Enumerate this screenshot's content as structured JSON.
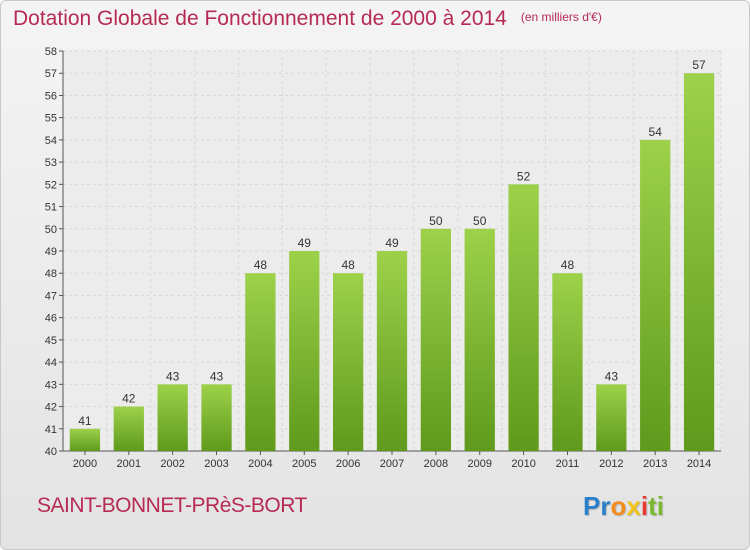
{
  "chart_data": {
    "type": "bar",
    "title": "Dotation Globale de Fonctionnement de 2000 à 2014",
    "unit_note": "(en milliers d'€)",
    "categories": [
      "2000",
      "2001",
      "2002",
      "2003",
      "2004",
      "2005",
      "2006",
      "2007",
      "2008",
      "2009",
      "2010",
      "2011",
      "2012",
      "2013",
      "2014"
    ],
    "values": [
      41,
      42,
      43,
      43,
      48,
      49,
      48,
      49,
      50,
      50,
      52,
      48,
      43,
      54,
      57
    ],
    "ylim": [
      40,
      58
    ],
    "yticks": [
      40,
      41,
      42,
      43,
      44,
      45,
      46,
      47,
      48,
      49,
      50,
      51,
      52,
      53,
      54,
      55,
      56,
      57,
      58
    ],
    "grid": true,
    "bar_color": "#7cb82f"
  },
  "commune": "SAINT-BONNET-PRèS-BORT",
  "logo": {
    "letters": [
      "P",
      "r",
      "o",
      "x",
      "i",
      "t",
      "i"
    ],
    "colors": [
      "#2a7fc9",
      "#2a7fc9",
      "#f28c1e",
      "#f0c419",
      "#e63b2e",
      "#79b830",
      "#79b830"
    ]
  }
}
